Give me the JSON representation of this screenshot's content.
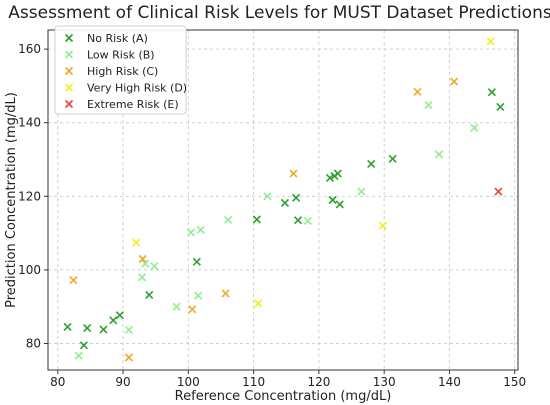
{
  "chart_data": {
    "type": "scatter",
    "title": "Assessment of Clinical Risk Levels for MUST Dataset Predictions",
    "xlabel": "Reference Concentration (mg/dL)",
    "ylabel": "Prediction Concentration (mg/dL)",
    "xlim": [
      78.5,
      150.5
    ],
    "ylim": [
      72.8,
      165.2
    ],
    "xticks": [
      80,
      90,
      100,
      110,
      120,
      130,
      140,
      150
    ],
    "yticks": [
      80,
      100,
      120,
      140,
      160
    ],
    "grid": true,
    "legend_position": "top-left",
    "marker": "x",
    "series": [
      {
        "name": "No Risk (A)",
        "color": "#2ca02c",
        "points": [
          [
            81.5,
            84.5
          ],
          [
            84.0,
            79.5
          ],
          [
            84.5,
            84.2
          ],
          [
            87.0,
            83.8
          ],
          [
            88.5,
            86.3
          ],
          [
            89.5,
            87.7
          ],
          [
            94.0,
            93.2
          ],
          [
            101.3,
            102.2
          ],
          [
            110.5,
            113.7
          ],
          [
            114.8,
            118.2
          ],
          [
            116.5,
            119.6
          ],
          [
            116.8,
            113.5
          ],
          [
            121.7,
            125.0
          ],
          [
            122.1,
            119.0
          ],
          [
            122.4,
            125.5
          ],
          [
            122.9,
            126.2
          ],
          [
            123.2,
            117.8
          ],
          [
            128.0,
            128.8
          ],
          [
            131.3,
            130.2
          ],
          [
            146.5,
            148.3
          ],
          [
            147.8,
            144.3
          ]
        ]
      },
      {
        "name": "Low Risk (B)",
        "color": "#90ee90",
        "points": [
          [
            83.2,
            76.7
          ],
          [
            90.9,
            83.7
          ],
          [
            92.9,
            98.0
          ],
          [
            93.4,
            101.7
          ],
          [
            94.8,
            101.0
          ],
          [
            98.2,
            90.0
          ],
          [
            100.4,
            110.2
          ],
          [
            101.5,
            93.0
          ],
          [
            101.9,
            110.9
          ],
          [
            106.1,
            113.6
          ],
          [
            112.1,
            120.0
          ],
          [
            118.3,
            113.3
          ],
          [
            126.5,
            121.3
          ],
          [
            136.8,
            144.8
          ],
          [
            138.4,
            131.4
          ],
          [
            143.8,
            138.6
          ]
        ]
      },
      {
        "name": "High Risk (C)",
        "color": "#f5a623",
        "points": [
          [
            82.4,
            97.2
          ],
          [
            90.9,
            76.2
          ],
          [
            93.0,
            103.0
          ],
          [
            100.6,
            89.3
          ],
          [
            105.7,
            93.6
          ],
          [
            116.1,
            126.2
          ],
          [
            135.1,
            148.4
          ],
          [
            140.7,
            151.2
          ]
        ]
      },
      {
        "name": "Very High Risk (D)",
        "color": "#f2ee1b",
        "points": [
          [
            92.0,
            107.4
          ],
          [
            110.7,
            90.9
          ],
          [
            129.8,
            112.0
          ],
          [
            146.3,
            162.1
          ]
        ]
      },
      {
        "name": "Extreme Risk (E)",
        "color": "#e8413c",
        "points": [
          [
            147.5,
            121.3
          ]
        ]
      }
    ]
  }
}
